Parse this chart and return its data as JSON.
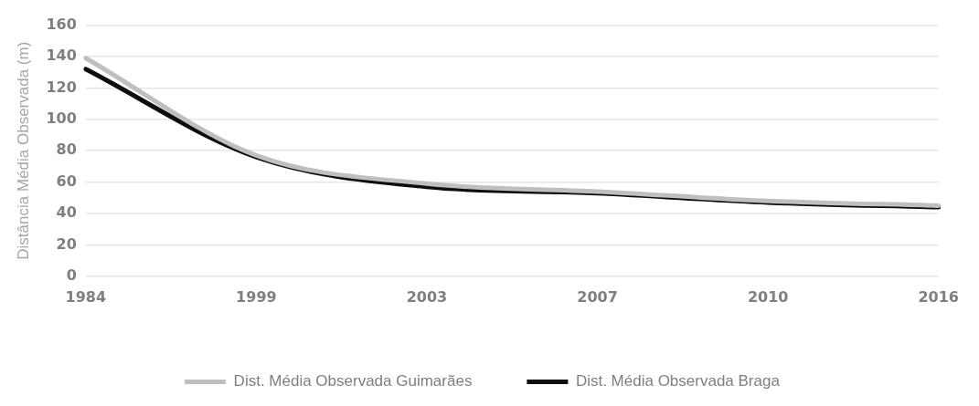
{
  "chart_data": {
    "type": "line",
    "ylabel": "Distância Média Observada (m)",
    "categories": [
      "1984",
      "1999",
      "2003",
      "2007",
      "2010",
      "2016"
    ],
    "series": [
      {
        "name": "Dist. Média Observada Guimarães",
        "color": "#bfbfbf",
        "values": [
          139,
          77,
          59,
          54,
          48,
          45
        ]
      },
      {
        "name": "Dist. Média Observada Braga",
        "color": "#0d0d0d",
        "values": [
          132,
          76,
          57,
          53,
          47,
          44
        ]
      }
    ],
    "ylim": [
      0,
      160
    ],
    "yticks": [
      0,
      20,
      40,
      60,
      80,
      100,
      120,
      140,
      160
    ],
    "grid": "y",
    "legend": "bottom",
    "marker": "none",
    "line_style": "solid"
  }
}
